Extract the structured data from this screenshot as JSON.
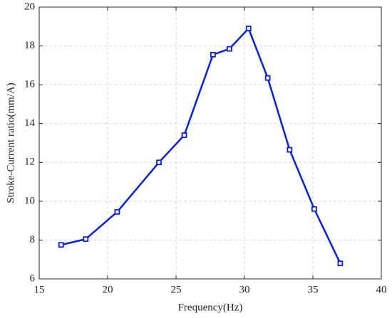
{
  "chart_data": {
    "type": "line",
    "xlabel": "Frequency(Hz)",
    "ylabel": "Stroke-Current ratio(mm/A)",
    "x": [
      16.6,
      18.4,
      20.7,
      23.75,
      25.6,
      27.7,
      28.9,
      30.3,
      31.7,
      33.3,
      35.1,
      37.0
    ],
    "series": [
      {
        "color": "#0a1ee6",
        "values": [
          7.75,
          8.05,
          9.45,
          12.0,
          13.4,
          17.55,
          17.85,
          18.9,
          16.35,
          12.65,
          9.6,
          6.8
        ]
      }
    ],
    "xlim": [
      15,
      40
    ],
    "xticks": [
      15,
      20,
      25,
      30,
      35,
      40
    ],
    "ylim": [
      6,
      20
    ],
    "yticks": [
      6,
      8,
      10,
      12,
      14,
      16,
      18,
      20
    ],
    "grid": true
  }
}
